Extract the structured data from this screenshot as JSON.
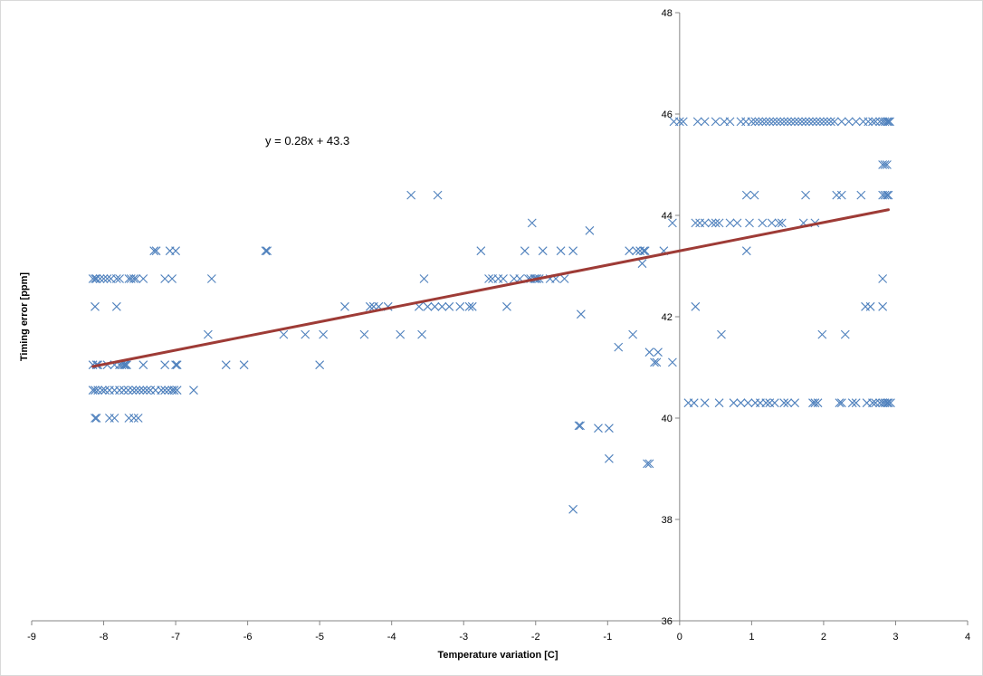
{
  "chart_data": {
    "type": "scatter",
    "title": "",
    "xlabel": "Temperature variation [C]",
    "ylabel": "Timing error [ppm]",
    "xlim": [
      -9,
      4
    ],
    "ylim": [
      36,
      48
    ],
    "xticks": [
      -9,
      -8,
      -7,
      -6,
      -5,
      -4,
      -3,
      -2,
      -1,
      0,
      1,
      2,
      3,
      4
    ],
    "yticks": [
      36,
      38,
      40,
      42,
      44,
      46,
      48
    ],
    "xtick_labels": [
      "-9",
      "-8",
      "-7",
      "-6",
      "-5",
      "-4",
      "-3",
      "-2",
      "-1",
      "0",
      "1",
      "2",
      "3",
      "4"
    ],
    "ytick_labels": [
      "36",
      "38",
      "40",
      "42",
      "44",
      "46",
      "48"
    ],
    "grid": false,
    "legend": "none",
    "marker": "x",
    "marker_color": "#4f81bd",
    "trendline_color": "#9e3b36",
    "trendline": {
      "equation": "y = 0.28x + 43.3",
      "slope": 0.28,
      "intercept": 43.3,
      "x_range": [
        -8.15,
        2.9
      ]
    },
    "series": [
      {
        "x": [
          -8.15,
          -8.12,
          -8.1,
          -8.05,
          -8.0,
          -7.95,
          -7.9,
          -7.82,
          -7.78,
          -7.65,
          -7.62,
          -7.58,
          -7.55,
          -7.45,
          -7.3,
          -7.27,
          -7.15,
          -7.08,
          -7.05,
          -7.0,
          -6.5,
          -5.75,
          -5.73,
          -8.15,
          -8.1,
          -7.85,
          -7.78,
          -7.72,
          -7.68,
          -6.55,
          -6.3,
          -6.05,
          -5.5,
          -5.2,
          -5.0,
          -4.95,
          -4.65,
          -4.38,
          -4.3,
          -4.25,
          -4.18,
          -4.05,
          -3.88,
          -3.73,
          -3.62,
          -3.58,
          -3.55,
          -3.5,
          -3.4,
          -3.36,
          -3.3,
          -3.2,
          -3.05,
          -2.92,
          -2.88,
          -2.76,
          -2.65,
          -2.6,
          -2.52,
          -2.45,
          -2.4,
          -2.3,
          -2.22,
          -2.15,
          -2.1,
          -2.07,
          -2.05,
          -2.02,
          -2.0,
          -1.98,
          -1.95,
          -1.9,
          -1.8,
          -1.72,
          -1.65,
          -1.6,
          -1.48,
          -1.4,
          -1.37,
          -1.25,
          -1.13,
          -0.98,
          -0.85,
          -0.7,
          -0.65,
          -0.6,
          -0.55,
          -0.52,
          -0.5,
          -0.48,
          -0.45,
          -0.42,
          -0.35,
          -0.3,
          -0.22,
          -0.1,
          -8.12,
          -8.08,
          -7.95,
          -7.82,
          -7.75,
          -7.7,
          -7.45,
          -7.15,
          -7.0,
          -6.98,
          -8.15,
          -8.12,
          -8.08,
          -8.02,
          -7.98,
          -7.92,
          -7.85,
          -7.78,
          -7.72,
          -7.66,
          -7.6,
          -7.55,
          -7.5,
          -7.45,
          -7.4,
          -7.35,
          -7.28,
          -7.2,
          -7.15,
          -7.1,
          -7.05,
          -7.02,
          -6.98,
          -6.75,
          -8.12,
          -8.1,
          -7.92,
          -7.85,
          -7.65,
          -7.58,
          -7.52,
          -0.08,
          0.0,
          0.05,
          0.25,
          0.35,
          0.5,
          0.62,
          0.7,
          0.85,
          0.92,
          1.0,
          1.05,
          1.1,
          1.15,
          1.2,
          1.25,
          1.3,
          1.35,
          1.4,
          1.45,
          1.5,
          1.55,
          1.6,
          1.65,
          1.7,
          1.75,
          1.8,
          1.85,
          1.9,
          1.95,
          2.0,
          2.05,
          2.1,
          2.15,
          2.25,
          2.35,
          2.45,
          2.55,
          2.62,
          2.68,
          2.72,
          2.78,
          2.82,
          2.85,
          2.88,
          2.9,
          2.92,
          0.22,
          0.28,
          0.35,
          0.45,
          0.5,
          0.55,
          0.7,
          0.8,
          0.97,
          1.15,
          1.28,
          1.38,
          1.42,
          1.72,
          1.88,
          0.93,
          1.04,
          1.75,
          2.18,
          2.25,
          2.52,
          2.82,
          2.85,
          2.88,
          2.9,
          2.82,
          2.85,
          2.88,
          0.12,
          0.2,
          0.35,
          0.55,
          0.75,
          0.85,
          0.95,
          1.05,
          1.12,
          1.2,
          1.25,
          1.32,
          1.45,
          1.5,
          1.6,
          1.85,
          1.88,
          1.92,
          2.22,
          2.25,
          2.4,
          2.45,
          2.6,
          2.68,
          2.72,
          2.78,
          2.82,
          2.85,
          2.88,
          2.9,
          2.93,
          0.93,
          0.22,
          0.58,
          1.98,
          2.3,
          2.58,
          2.65,
          2.82,
          2.82,
          -1.38,
          -0.98,
          -0.42,
          -1.48,
          -0.1,
          -0.32
        ],
        "y": [
          42.75,
          42.75,
          42.75,
          42.75,
          42.75,
          42.75,
          42.75,
          42.75,
          42.75,
          42.75,
          42.75,
          42.75,
          42.75,
          42.75,
          43.3,
          43.3,
          42.75,
          43.3,
          42.75,
          43.3,
          42.75,
          43.3,
          43.3,
          41.05,
          41.05,
          41.05,
          41.05,
          41.05,
          41.05,
          41.65,
          41.05,
          41.05,
          41.65,
          41.65,
          41.05,
          41.65,
          42.2,
          41.65,
          42.2,
          42.2,
          42.2,
          42.2,
          41.65,
          44.4,
          42.2,
          41.65,
          42.75,
          42.2,
          42.2,
          44.4,
          42.2,
          42.2,
          42.2,
          42.2,
          42.2,
          43.3,
          42.75,
          42.75,
          42.75,
          42.75,
          42.2,
          42.75,
          42.75,
          43.3,
          42.75,
          42.75,
          43.85,
          42.75,
          42.75,
          42.75,
          42.75,
          43.3,
          42.75,
          42.75,
          43.3,
          42.75,
          43.3,
          39.85,
          42.05,
          43.7,
          39.8,
          39.2,
          41.4,
          43.3,
          41.65,
          43.3,
          43.3,
          43.05,
          43.3,
          43.3,
          39.1,
          41.3,
          41.1,
          41.3,
          43.3,
          43.85,
          42.2,
          41.05,
          41.05,
          42.2,
          41.05,
          41.05,
          41.05,
          41.05,
          41.05,
          41.05,
          40.55,
          40.55,
          40.55,
          40.55,
          40.55,
          40.55,
          40.55,
          40.55,
          40.55,
          40.55,
          40.55,
          40.55,
          40.55,
          40.55,
          40.55,
          40.55,
          40.55,
          40.55,
          40.55,
          40.55,
          40.55,
          40.55,
          40.55,
          40.55,
          40.0,
          40.0,
          40.0,
          40.0,
          40.0,
          40.0,
          40.0,
          45.85,
          45.85,
          45.85,
          45.85,
          45.85,
          45.85,
          45.85,
          45.85,
          45.85,
          45.85,
          45.85,
          45.85,
          45.85,
          45.85,
          45.85,
          45.85,
          45.85,
          45.85,
          45.85,
          45.85,
          45.85,
          45.85,
          45.85,
          45.85,
          45.85,
          45.85,
          45.85,
          45.85,
          45.85,
          45.85,
          45.85,
          45.85,
          45.85,
          45.85,
          45.85,
          45.85,
          45.85,
          45.85,
          45.85,
          45.85,
          45.85,
          45.85,
          45.85,
          45.85,
          45.85,
          45.85,
          45.85,
          43.85,
          43.85,
          43.85,
          43.85,
          43.85,
          43.85,
          43.85,
          43.85,
          43.85,
          43.85,
          43.85,
          43.85,
          43.85,
          43.85,
          43.85,
          44.4,
          44.4,
          44.4,
          44.4,
          44.4,
          44.4,
          44.4,
          44.4,
          44.4,
          44.4,
          45.0,
          45.0,
          45.0,
          40.3,
          40.3,
          40.3,
          40.3,
          40.3,
          40.3,
          40.3,
          40.3,
          40.3,
          40.3,
          40.3,
          40.3,
          40.3,
          40.3,
          40.3,
          40.3,
          40.3,
          40.3,
          40.3,
          40.3,
          40.3,
          40.3,
          40.3,
          40.3,
          40.3,
          40.3,
          40.3,
          40.3,
          40.3,
          40.3,
          40.3,
          43.3,
          42.2,
          41.65,
          41.65,
          41.65,
          42.2,
          42.2,
          42.2,
          42.75,
          39.85,
          39.8,
          39.1,
          38.2,
          41.1,
          41.1
        ]
      }
    ]
  }
}
